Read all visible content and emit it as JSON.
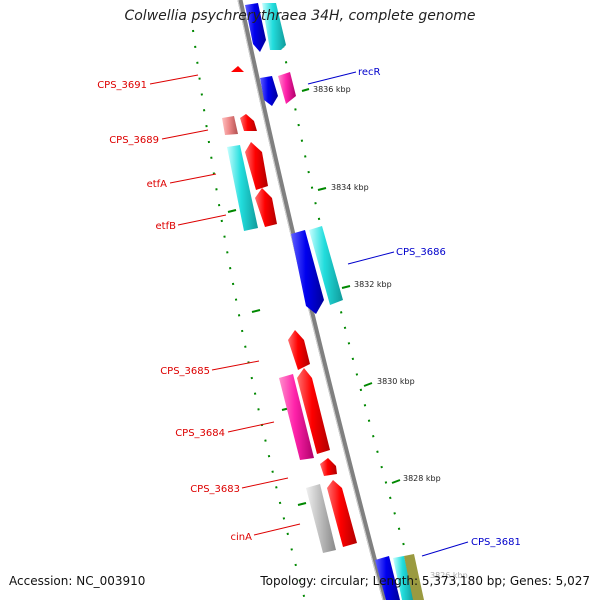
{
  "title": "Colwellia psychrerythraea 34H, complete genome",
  "footer": {
    "accession": "Accession: NC_003910",
    "summary": "Topology: circular; Length: 5,373,180 bp; Genes: 5,027"
  },
  "ruler": [
    "3836 kbp",
    "3834 kbp",
    "3832 kbp",
    "3830 kbp",
    "3828 kbp",
    "3826 kbp"
  ],
  "genes": [
    "CPS_3691",
    "recR",
    "CPS_3689",
    "etfA",
    "etfB",
    "CPS_3686",
    "CPS_3685",
    "CPS_3684",
    "CPS_3683",
    "CPS_3681",
    "cinA"
  ],
  "colors": {
    "forward_label": "#dd0000",
    "reverse_label": "#0000cc",
    "red": "#ff0000",
    "blue": "#0000ee",
    "cyan": "#22dddd",
    "magenta": "#ff22aa",
    "pink": "#ee8888",
    "gray": "#c0c0c0",
    "backbone": "#808080",
    "ticks": "#008800"
  }
}
